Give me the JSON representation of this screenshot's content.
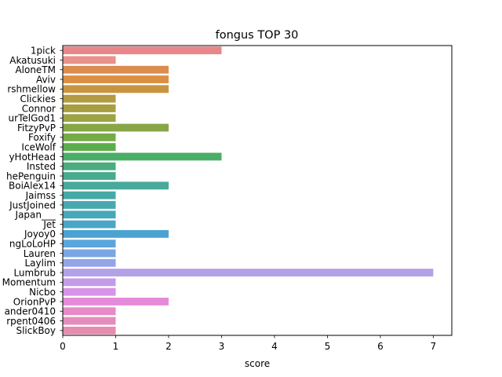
{
  "chart_data": {
    "type": "bar",
    "orientation": "horizontal",
    "title": "fongus TOP 30",
    "xlabel": "score",
    "ylabel": "",
    "xlim": [
      0,
      7.35
    ],
    "xticks": [
      0,
      1,
      2,
      3,
      4,
      5,
      6,
      7
    ],
    "grid": false,
    "legend": "none",
    "categories": [
      "1pick",
      "Akatusuki",
      "AloneTM",
      "Aviv",
      "rshmellow",
      "Clickies",
      "Connor",
      "urTelGod1",
      "FitzyPvP",
      "Foxify",
      "IceWolf",
      "yHotHead",
      "Insted",
      "hePenguin",
      "BoiAlex14",
      "Jaimss",
      "JustJoined",
      "Japan___",
      "Jet",
      "Joyoy0",
      "ngLoLoHP",
      "Lauren",
      "Laylim",
      "Lumbrub",
      "Momentum",
      "Nicbo",
      "OrionPvP",
      "ander0410",
      "rpent0406",
      "SlickBoy"
    ],
    "values": [
      3,
      1,
      2,
      2,
      2,
      1,
      1,
      1,
      2,
      1,
      1,
      3,
      1,
      1,
      2,
      1,
      1,
      1,
      1,
      2,
      1,
      1,
      1,
      7,
      1,
      1,
      2,
      1,
      1,
      1
    ],
    "colors": [
      "#e8868a",
      "#e8928a",
      "#db8c4e",
      "#dc8f42",
      "#c8943f",
      "#b39b43",
      "#a79e42",
      "#9ba444",
      "#88a646",
      "#74ab47",
      "#5aad4b",
      "#4aae67",
      "#4aac7f",
      "#48ab8f",
      "#47aa9b",
      "#46a9a6",
      "#47a8b0",
      "#48a7ba",
      "#4aa6c6",
      "#4ba3d2",
      "#5aa5de",
      "#7aa6e3",
      "#94a4e8",
      "#b3a1e8",
      "#c59be8",
      "#d893e6",
      "#e58ad8",
      "#e78ac8",
      "#e68cbc",
      "#e68cb0"
    ]
  }
}
